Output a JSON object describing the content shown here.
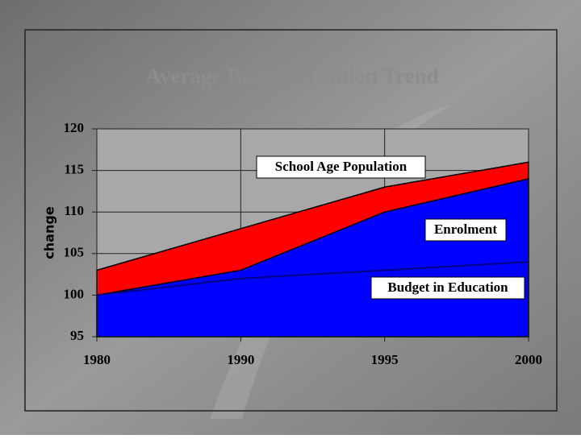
{
  "chart_data": {
    "type": "area",
    "title": "Average Basic Education Trend",
    "ylabel": "change",
    "categories": [
      "1980",
      "1990",
      "1995",
      "2000"
    ],
    "ylim": [
      95,
      120
    ],
    "yticks": [
      95,
      100,
      105,
      110,
      115,
      120
    ],
    "grid": true,
    "series": [
      {
        "name": "School Age Population",
        "color": "#ff0000",
        "mark": "area",
        "values": [
          103,
          108,
          113,
          116
        ]
      },
      {
        "name": "Enrolment",
        "color": "#0000ff",
        "mark": "area",
        "values": [
          100,
          103,
          110,
          114
        ]
      },
      {
        "name": "Budget in Education",
        "color": "#000080",
        "mark": "line",
        "values": [
          100,
          102,
          103,
          104
        ]
      }
    ]
  }
}
